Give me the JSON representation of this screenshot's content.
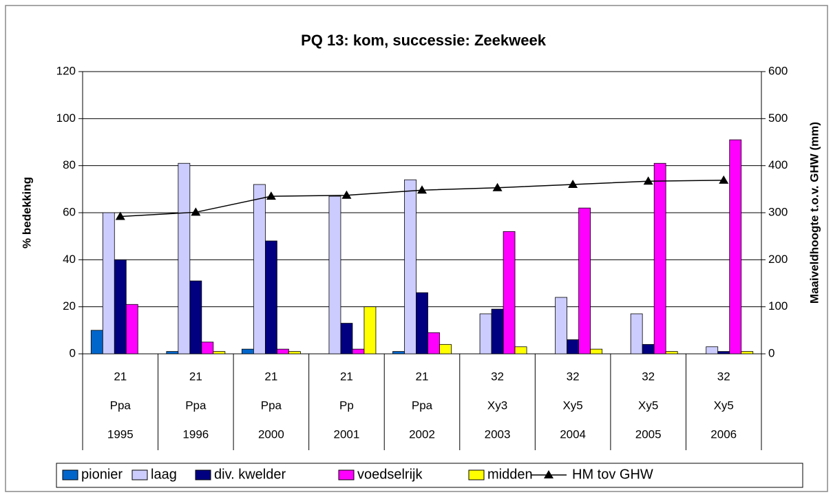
{
  "chart_data": {
    "type": "bar",
    "title": "PQ 13: kom, successie: Zeekweek",
    "y_label": "% bedekking",
    "y2_label": "Maaiveldhoogte t.o.v. GHW (mm)",
    "categories": [
      [
        "21",
        "Ppa",
        "1995"
      ],
      [
        "21",
        "Ppa",
        "1996"
      ],
      [
        "21",
        "Ppa",
        "2000"
      ],
      [
        "21",
        "Pp",
        "2001"
      ],
      [
        "21",
        "Ppa",
        "2002"
      ],
      [
        "32",
        "Xy3",
        "2003"
      ],
      [
        "32",
        "Xy5",
        "2004"
      ],
      [
        "32",
        "Xy5",
        "2005"
      ],
      [
        "32",
        "Xy5",
        "2006"
      ]
    ],
    "series": [
      {
        "name": "pionier",
        "color": "#0066cc",
        "values": [
          10,
          1,
          2,
          0,
          1,
          0,
          0,
          0,
          0
        ]
      },
      {
        "name": "laag",
        "color": "#ccccff",
        "values": [
          60,
          81,
          72,
          67,
          74,
          17,
          24,
          17,
          3
        ]
      },
      {
        "name": "div. kwelder",
        "color": "#000080",
        "values": [
          40,
          31,
          48,
          13,
          26,
          19,
          6,
          4,
          1
        ]
      },
      {
        "name": "voedselrijk",
        "color": "#ff00ff",
        "values": [
          21,
          5,
          2,
          2,
          9,
          52,
          62,
          81,
          91
        ]
      },
      {
        "name": "midden",
        "color": "#ffff00",
        "values": [
          0,
          1,
          1,
          20,
          4,
          3,
          2,
          1,
          1
        ]
      },
      {
        "name": "HM tov GHW",
        "color": "#000000",
        "type": "line",
        "axis": "y2",
        "values": [
          292,
          301,
          335,
          337,
          348,
          353,
          360,
          367,
          369
        ]
      }
    ],
    "ylim": [
      0,
      120
    ],
    "yticks": [
      0,
      20,
      40,
      60,
      80,
      100,
      120
    ],
    "y2lim": [
      0,
      600
    ],
    "y2ticks": [
      0,
      100,
      200,
      300,
      400,
      500,
      600
    ],
    "grid": true,
    "legend": "bottom"
  }
}
